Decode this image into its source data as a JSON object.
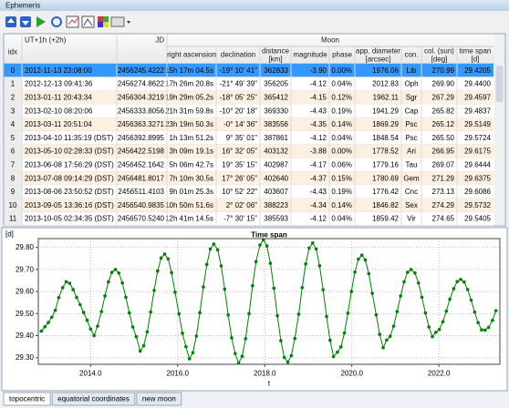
{
  "window": {
    "title": "Ephemeris"
  },
  "table": {
    "group_header": "Moon",
    "columns": [
      [
        "idx"
      ],
      [
        "UT+1h (+2h)"
      ],
      [
        "JD"
      ],
      [
        "right ascension"
      ],
      [
        "declination"
      ],
      [
        "distance",
        "[km]"
      ],
      [
        "magnitude"
      ],
      [
        "phase"
      ],
      [
        "app. diameter",
        "[arcsec]"
      ],
      [
        "con."
      ],
      [
        "col. (sun)",
        "[deg]"
      ],
      [
        "time span",
        "[d]"
      ]
    ],
    "rows": [
      [
        "0",
        "2012-11-13 23:08:00",
        "2456245.4222",
        "15h 17m 04.5s",
        "-19° 10' 41\"",
        "362833",
        "-3.90",
        "0.00%",
        "1976.06",
        "Lib",
        "270.99",
        "29.4205"
      ],
      [
        "1",
        "2012-12-13 09:41:36",
        "2456274.8622",
        "17h 26m 20.8s",
        "-21° 49' 39\"",
        "356205",
        "-4.12",
        "0.04%",
        "2012.83",
        "Oph",
        "269.90",
        "29.4400"
      ],
      [
        "2",
        "2013-01-11 20:43:34",
        "2456304.3219",
        "19h 29m 05.2s",
        "-18° 05' 25\"",
        "365412",
        "-4.15",
        "0.12%",
        "1962.11",
        "Sgr",
        "267.29",
        "29.4597"
      ],
      [
        "3",
        "2013-02-10 08:20:06",
        "2456333.8056",
        "21h 31m 59.8s",
        "-10° 20' 18\"",
        "369330",
        "-4.43",
        "0.19%",
        "1941.29",
        "Cap",
        "265.82",
        "29.4837"
      ],
      [
        "4",
        "2013-03-11 20:51:04",
        "2456363.3271",
        "23h 19m 50.3s",
        "-0° 14' 36\"",
        "383556",
        "-4.35",
        "0.14%",
        "1869.29",
        "Psc",
        "265.12",
        "29.5149"
      ],
      [
        "5",
        "2013-04-10 11:35:19 (DST)",
        "2456392.8995",
        "1h 13m 51.2s",
        "9° 35' 01\"",
        "387861",
        "-4.12",
        "0.04%",
        "1848.54",
        "Psc",
        "265.50",
        "29.5724"
      ],
      [
        "6",
        "2013-05-10 02:28:33 (DST)",
        "2456422.5198",
        "3h 09m 19.1s",
        "16° 32' 05\"",
        "403132",
        "-3.88",
        "0.00%",
        "1778.52",
        "Ari",
        "266.95",
        "29.6175"
      ],
      [
        "7",
        "2013-06-08 17:56:29 (DST)",
        "2456452.1642",
        "5h 06m 42.7s",
        "19° 35' 15\"",
        "402987",
        "-4.17",
        "0.06%",
        "1779.16",
        "Tau",
        "269.07",
        "29.6444"
      ],
      [
        "8",
        "2013-07-08 09:14:29 (DST)",
        "2456481.8017",
        "7h 10m 30.5s",
        "17° 26' 05\"",
        "402640",
        "-4.37",
        "0.15%",
        "1780.69",
        "Gem",
        "271.29",
        "29.6375"
      ],
      [
        "9",
        "2013-08-06 23:50:52 (DST)",
        "2456511.4103",
        "9h 01m 25.3s",
        "10° 52' 22\"",
        "403607",
        "-4.43",
        "0.19%",
        "1776.42",
        "Cnc",
        "273.13",
        "29.6086"
      ],
      [
        "10",
        "2013-09-05 13:36:16 (DST)",
        "2456540.9835",
        "10h 50m 51.6s",
        "2° 02' 06\"",
        "388223",
        "-4.34",
        "0.14%",
        "1846.82",
        "Sex",
        "274.29",
        "29.5732"
      ],
      [
        "11",
        "2013-10-05 02:34:35 (DST)",
        "2456570.5240",
        "12h 41m 14.5s",
        "-7° 30' 15\"",
        "385593",
        "-4.12",
        "0.04%",
        "1859.42",
        "Vir",
        "274.65",
        "29.5405"
      ]
    ]
  },
  "chart_data": {
    "type": "line",
    "title": "Time span",
    "ylabel": "[d]",
    "xlabel": "t",
    "grid": true,
    "xlim": [
      2012.8,
      2023.4
    ],
    "ylim": [
      29.27,
      29.84
    ],
    "xticks": [
      {
        "value": 2014,
        "label": "2014.0"
      },
      {
        "value": 2016,
        "label": "2016.0"
      },
      {
        "value": 2018,
        "label": "2018.0"
      },
      {
        "value": 2020,
        "label": "2020.0"
      },
      {
        "value": 2022,
        "label": "2022.0"
      }
    ],
    "yticks": [
      {
        "value": 29.3,
        "label": "29.30"
      },
      {
        "value": 29.4,
        "label": "29.40"
      },
      {
        "value": 29.5,
        "label": "29.50"
      },
      {
        "value": 29.6,
        "label": "29.60"
      },
      {
        "value": 29.7,
        "label": "29.70"
      },
      {
        "value": 29.8,
        "label": "29.80"
      }
    ],
    "x": [
      2012.87,
      2012.95,
      2013.03,
      2013.11,
      2013.19,
      2013.27,
      2013.36,
      2013.44,
      2013.52,
      2013.6,
      2013.68,
      2013.76,
      2013.84,
      2013.92,
      2014.0,
      2014.08,
      2014.16,
      2014.25,
      2014.33,
      2014.41,
      2014.49,
      2014.57,
      2014.65,
      2014.73,
      2014.81,
      2014.89,
      2014.97,
      2015.05,
      2015.14,
      2015.22,
      2015.3,
      2015.38,
      2015.46,
      2015.54,
      2015.62,
      2015.7,
      2015.78,
      2015.86,
      2015.94,
      2016.03,
      2016.11,
      2016.19,
      2016.27,
      2016.35,
      2016.43,
      2016.51,
      2016.59,
      2016.67,
      2016.75,
      2016.83,
      2016.92,
      2017.0,
      2017.08,
      2017.16,
      2017.24,
      2017.32,
      2017.4,
      2017.48,
      2017.56,
      2017.64,
      2017.72,
      2017.8,
      2017.89,
      2017.97,
      2018.05,
      2018.13,
      2018.21,
      2018.29,
      2018.37,
      2018.45,
      2018.53,
      2018.61,
      2018.69,
      2018.78,
      2018.86,
      2018.94,
      2019.02,
      2019.1,
      2019.18,
      2019.26,
      2019.34,
      2019.42,
      2019.5,
      2019.58,
      2019.67,
      2019.75,
      2019.83,
      2019.91,
      2019.99,
      2020.07,
      2020.15,
      2020.23,
      2020.31,
      2020.39,
      2020.47,
      2020.56,
      2020.64,
      2020.72,
      2020.8,
      2020.88,
      2020.96,
      2021.04,
      2021.12,
      2021.2,
      2021.28,
      2021.36,
      2021.45,
      2021.53,
      2021.61,
      2021.69,
      2021.77,
      2021.85,
      2021.93,
      2022.01,
      2022.09,
      2022.17,
      2022.25,
      2022.34,
      2022.42,
      2022.5,
      2022.58,
      2022.66,
      2022.74,
      2022.82,
      2022.9,
      2022.98,
      2023.06,
      2023.14,
      2023.23,
      2023.31
    ],
    "series": [
      {
        "color": "#008000",
        "values": [
          29.4205,
          29.44,
          29.4597,
          29.4837,
          29.5149,
          29.5724,
          29.6175,
          29.6444,
          29.6375,
          29.6086,
          29.5732,
          29.5405,
          29.505,
          29.47,
          29.43,
          29.4,
          29.443,
          29.509,
          29.58,
          29.644,
          29.687,
          29.7,
          29.684,
          29.639,
          29.574,
          29.503,
          29.439,
          29.395,
          29.33,
          29.354,
          29.417,
          29.507,
          29.605,
          29.693,
          29.752,
          29.77,
          29.748,
          29.686,
          29.597,
          29.499,
          29.411,
          29.35,
          29.295,
          29.323,
          29.398,
          29.504,
          29.621,
          29.723,
          29.793,
          29.815,
          29.789,
          29.716,
          29.611,
          29.494,
          29.39,
          29.319,
          29.275,
          29.306,
          29.386,
          29.5,
          29.626,
          29.736,
          29.811,
          29.835,
          29.807,
          29.728,
          29.615,
          29.49,
          29.377,
          29.301,
          29.28,
          29.309,
          29.387,
          29.497,
          29.618,
          29.725,
          29.797,
          29.82,
          29.793,
          29.717,
          29.608,
          29.487,
          29.379,
          29.305,
          29.325,
          29.349,
          29.412,
          29.502,
          29.6,
          29.688,
          29.747,
          29.765,
          29.743,
          29.681,
          29.592,
          29.494,
          29.406,
          29.345,
          29.38,
          29.397,
          29.443,
          29.509,
          29.58,
          29.644,
          29.687,
          29.7,
          29.684,
          29.639,
          29.574,
          29.503,
          29.439,
          29.395,
          29.415,
          29.428,
          29.463,
          29.511,
          29.565,
          29.613,
          29.645,
          29.655,
          29.643,
          29.609,
          29.561,
          29.507,
          29.459,
          29.426,
          29.425,
          29.437,
          29.469,
          29.513
        ]
      }
    ]
  },
  "tabs": [
    "topocentric",
    "equatorial coordinates",
    "new moon"
  ]
}
